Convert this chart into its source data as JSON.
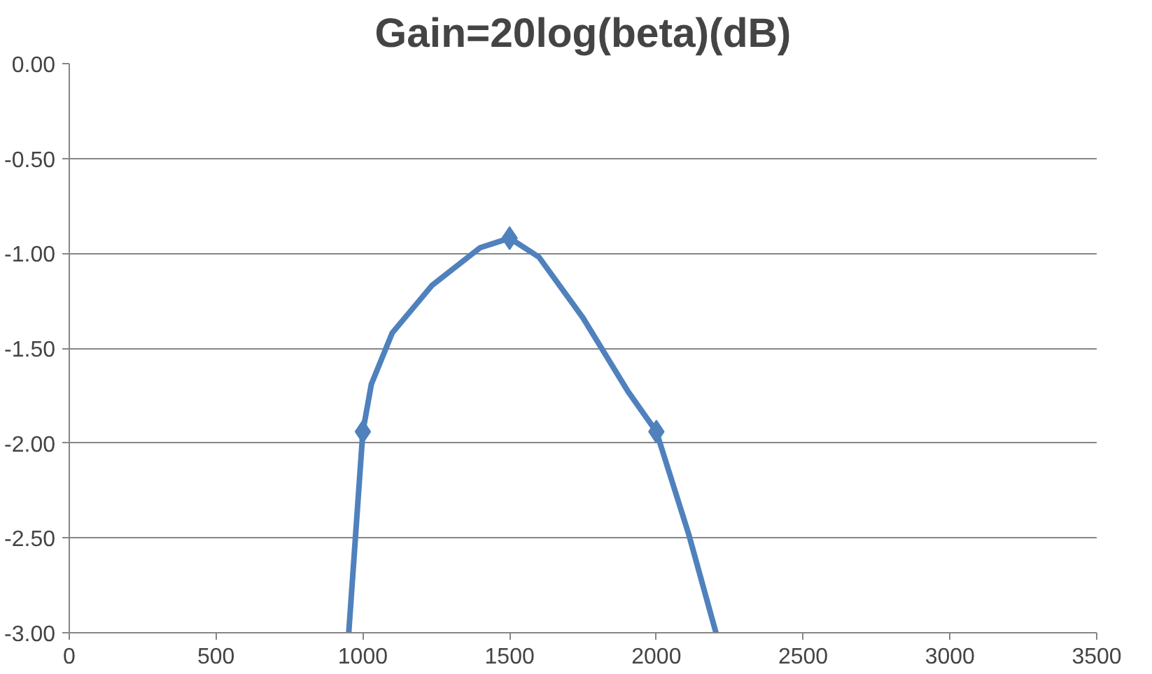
{
  "chart_data": {
    "type": "line",
    "title": "Gain=20log(beta)(dB)",
    "series": [
      {
        "color": "#4f81bd",
        "marker": "none",
        "x": [
          952,
          1000,
          1029,
          1100,
          1235,
          1400,
          1500,
          1600,
          1750,
          1904,
          2000,
          2110,
          2203
        ],
        "values": [
          -3.0,
          -1.94,
          -1.69,
          -1.42,
          -1.17,
          -0.97,
          -0.92,
          -1.02,
          -1.34,
          -1.73,
          -1.94,
          -2.48,
          -3.0
        ]
      },
      {
        "type": "scatter",
        "color": "#4f81bd",
        "marker": "diamond",
        "x": [
          1000,
          1500,
          2000
        ],
        "values": [
          -1.94,
          -0.92,
          -1.94
        ]
      }
    ],
    "xlim": [
      0,
      3500
    ],
    "xticks": [
      0,
      500,
      1000,
      1500,
      2000,
      2500,
      3000,
      3500
    ],
    "ylim": [
      -3,
      0
    ],
    "yticks": [
      {
        "value": 0,
        "label": "0.00"
      },
      {
        "value": -0.5,
        "label": "-0.50"
      },
      {
        "value": -1,
        "label": "-1.00"
      },
      {
        "value": -1.5,
        "label": "-1.50"
      },
      {
        "value": -2,
        "label": "-2.00"
      },
      {
        "value": -2.5,
        "label": "-2.50"
      },
      {
        "value": -3,
        "label": "-3.00"
      }
    ],
    "grid": "y"
  }
}
